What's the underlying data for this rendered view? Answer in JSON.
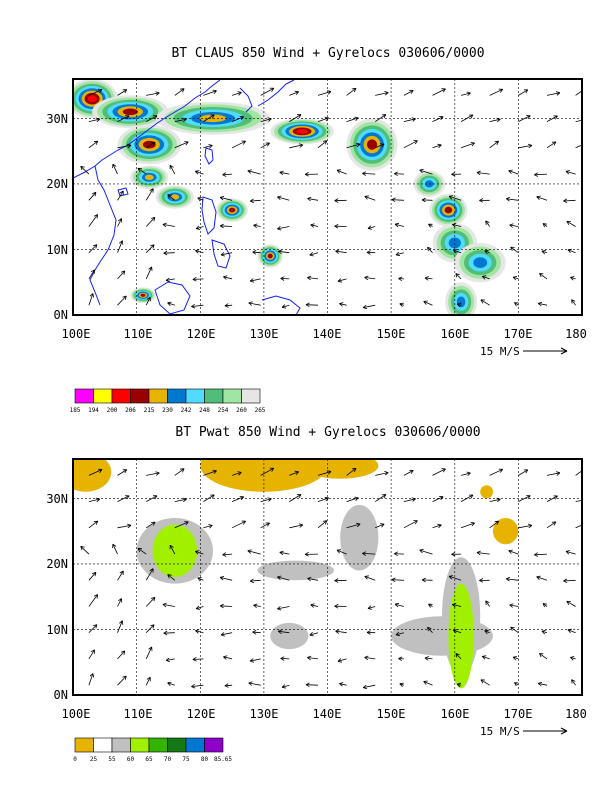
{
  "chart_data": [
    {
      "type": "heatmap",
      "title": "BT CLAUS 850 Wind + Gyrelocs 030606/0000",
      "x_ticks": [
        "100E",
        "110E",
        "120E",
        "130E",
        "140E",
        "150E",
        "160E",
        "170E",
        "180"
      ],
      "y_ticks": [
        "0N",
        "10N",
        "20N",
        "30N"
      ],
      "xlim": [
        100,
        180
      ],
      "ylim": [
        0,
        36
      ],
      "grid": true,
      "vector_reference": "15 M/S",
      "colorbar_levels": [
        "185",
        "194",
        "200",
        "206",
        "215",
        "230",
        "242",
        "248",
        "254",
        "260",
        "265"
      ],
      "colorbar_colors": [
        "#ff00ff",
        "#ffff00",
        "#ff0000",
        "#990000",
        "#e6b400",
        "#0078d2",
        "#50dcff",
        "#50be78",
        "#a0e6a0",
        "#e6e6e6"
      ],
      "cloud_regions": [
        {
          "lon": 103,
          "lat": 33,
          "rx": 4,
          "ry": 3,
          "level": 5
        },
        {
          "lon": 109,
          "lat": 31,
          "rx": 6,
          "ry": 2.5,
          "level": 4
        },
        {
          "lon": 112,
          "lat": 26,
          "rx": 5,
          "ry": 3,
          "level": 4
        },
        {
          "lon": 122,
          "lat": 30,
          "rx": 9,
          "ry": 2.5,
          "level": 3
        },
        {
          "lon": 136,
          "lat": 28,
          "rx": 5,
          "ry": 2,
          "level": 5
        },
        {
          "lon": 147,
          "lat": 26,
          "rx": 4,
          "ry": 4,
          "level": 4
        },
        {
          "lon": 112,
          "lat": 21,
          "rx": 3,
          "ry": 1.8,
          "level": 3
        },
        {
          "lon": 116,
          "lat": 18,
          "rx": 3,
          "ry": 1.8,
          "level": 3
        },
        {
          "lon": 125,
          "lat": 16,
          "rx": 2.5,
          "ry": 1.8,
          "level": 4
        },
        {
          "lon": 131,
          "lat": 9,
          "rx": 2,
          "ry": 1.8,
          "level": 4
        },
        {
          "lon": 111,
          "lat": 3,
          "rx": 2,
          "ry": 1.2,
          "level": 4
        },
        {
          "lon": 156,
          "lat": 20,
          "rx": 2.5,
          "ry": 2,
          "level": 2
        },
        {
          "lon": 159,
          "lat": 16,
          "rx": 3,
          "ry": 2.5,
          "level": 4
        },
        {
          "lon": 160,
          "lat": 11,
          "rx": 3.5,
          "ry": 3,
          "level": 2
        },
        {
          "lon": 164,
          "lat": 8,
          "rx": 4,
          "ry": 3,
          "level": 2
        },
        {
          "lon": 161,
          "lat": 2,
          "rx": 2.5,
          "ry": 3,
          "level": 2
        }
      ]
    },
    {
      "type": "heatmap",
      "title": "BT Pwat 850 Wind + Gyrelocs 030606/0000",
      "x_ticks": [
        "100E",
        "110E",
        "120E",
        "130E",
        "140E",
        "150E",
        "160E",
        "170E",
        "180"
      ],
      "y_ticks": [
        "0N",
        "10N",
        "20N",
        "30N"
      ],
      "xlim": [
        100,
        180
      ],
      "ylim": [
        0,
        36
      ],
      "grid": true,
      "vector_reference": "15 M/S",
      "colorbar_levels": [
        "0",
        "25",
        "55",
        "60",
        "65",
        "70",
        "75",
        "80",
        "85.65"
      ],
      "colorbar_colors": [
        "#e6b400",
        "#ffffff",
        "#c0c0c0",
        "#a0f000",
        "#32b400",
        "#147814",
        "#0078d2",
        "#8c00c8"
      ],
      "regions": [
        {
          "lon": 102,
          "lat": 34,
          "rx": 4,
          "ry": 3,
          "level": 0
        },
        {
          "lon": 130,
          "lat": 35,
          "rx": 10,
          "ry": 4,
          "level": 0
        },
        {
          "lon": 142,
          "lat": 35,
          "rx": 6,
          "ry": 2,
          "level": 0
        },
        {
          "lon": 165,
          "lat": 31,
          "rx": 1,
          "ry": 1,
          "level": 0
        },
        {
          "lon": 168,
          "lat": 25,
          "rx": 2,
          "ry": 2,
          "level": 0
        },
        {
          "lon": 116,
          "lat": 22,
          "rx": 6,
          "ry": 5,
          "level": 2
        },
        {
          "lon": 116,
          "lat": 22,
          "rx": 3.5,
          "ry": 4,
          "level": 3
        },
        {
          "lon": 135,
          "lat": 19,
          "rx": 6,
          "ry": 1.5,
          "level": 2
        },
        {
          "lon": 145,
          "lat": 24,
          "rx": 3,
          "ry": 5,
          "level": 2
        },
        {
          "lon": 134,
          "lat": 9,
          "rx": 3,
          "ry": 2,
          "level": 2
        },
        {
          "lon": 158,
          "lat": 9,
          "rx": 8,
          "ry": 3,
          "level": 2
        },
        {
          "lon": 161,
          "lat": 12,
          "rx": 3,
          "ry": 9,
          "level": 2
        },
        {
          "lon": 161,
          "lat": 9,
          "rx": 2,
          "ry": 8,
          "level": 3
        }
      ]
    }
  ]
}
